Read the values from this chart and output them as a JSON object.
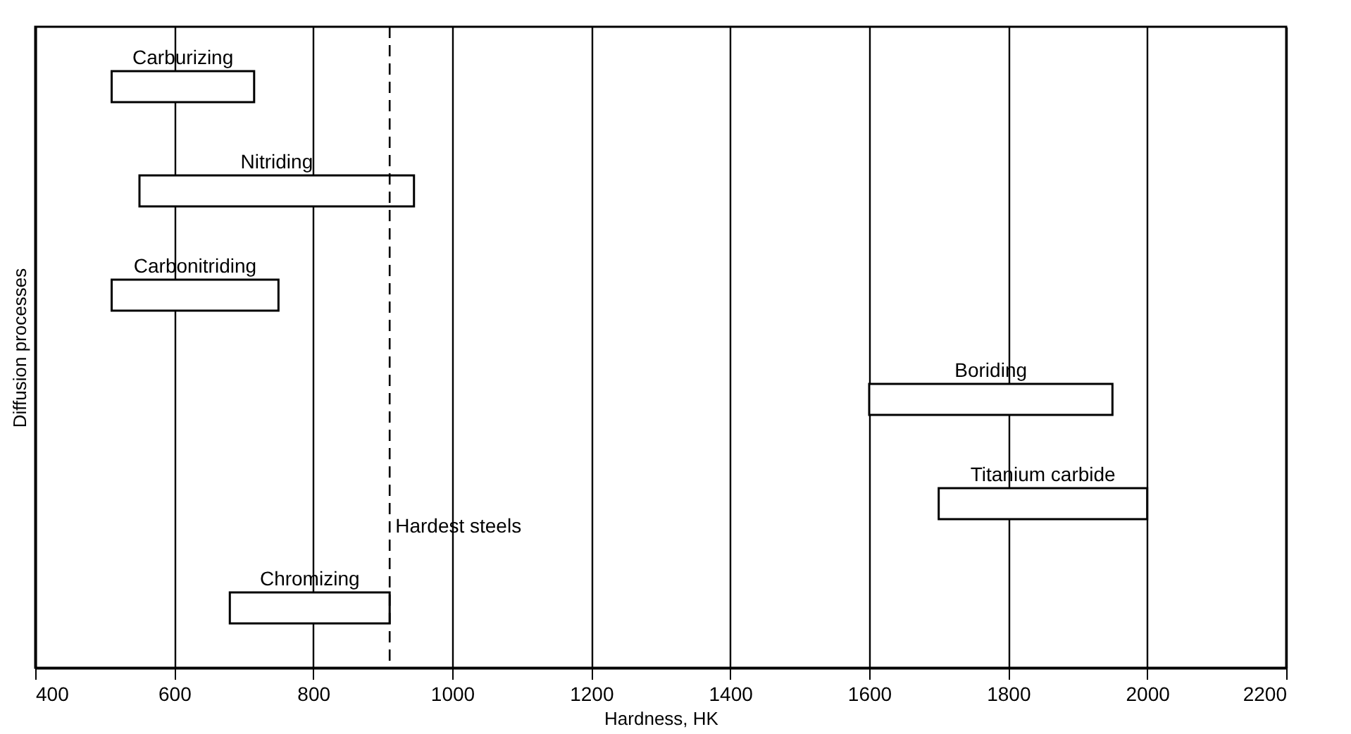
{
  "chart_data": {
    "type": "bar",
    "orientation": "horizontal",
    "categories": [
      "Carburizing",
      "Nitriding",
      "Carbonitriding",
      "Boriding",
      "Titanium carbide",
      "Chromizing"
    ],
    "base": [
      510,
      550,
      510,
      1600,
      1700,
      680
    ],
    "values": [
      205,
      395,
      240,
      350,
      300,
      230
    ],
    "color": "#ffffff",
    "xlabel": "Hardness, HK",
    "ylabel": "Diffusion processes",
    "xlim": [
      400,
      2200
    ],
    "xticks": [
      400,
      600,
      800,
      1000,
      1200,
      1400,
      1600,
      1800,
      2000,
      2200
    ],
    "grid": "x",
    "tick_labels": "x",
    "ref_lines": [
      {
        "axis": "x",
        "value": 910,
        "label": "Hardest steels",
        "line_style": "dashed"
      }
    ]
  }
}
